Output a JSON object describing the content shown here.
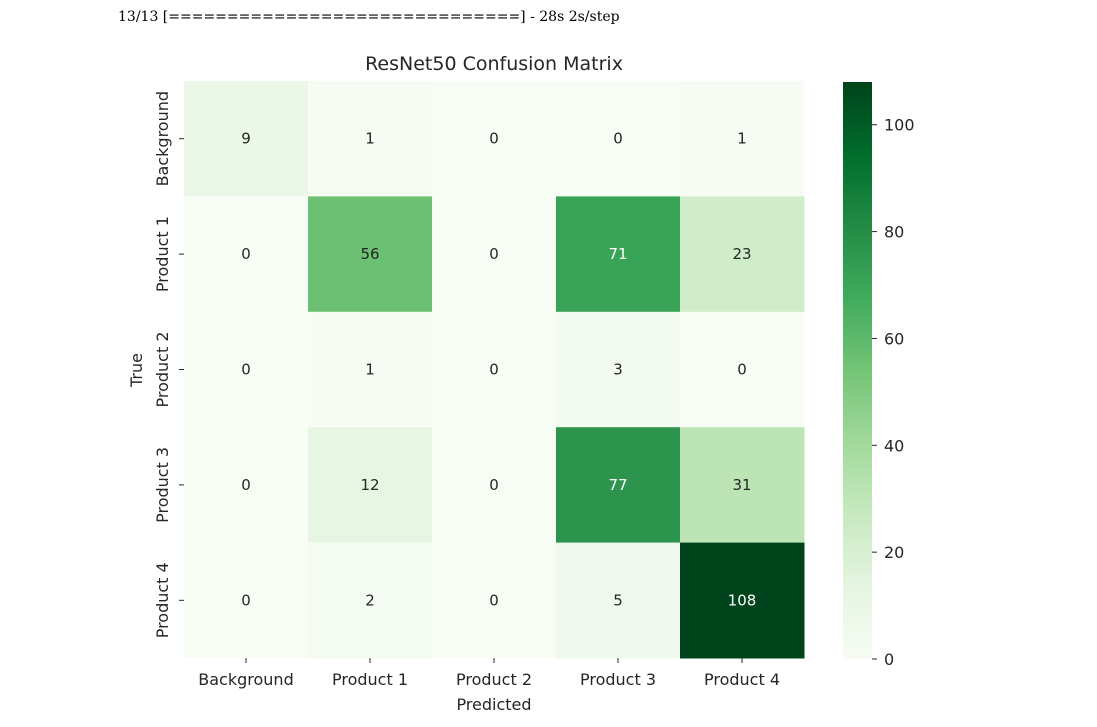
{
  "console": {
    "progress_text": "13/13 [==============================] - 28s 2s/step"
  },
  "chart_data": {
    "type": "heatmap",
    "title": "ResNet50 Confusion Matrix",
    "xlabel": "Predicted",
    "ylabel": "True",
    "x_categories": [
      "Background",
      "Product 1",
      "Product 2",
      "Product 3",
      "Product 4"
    ],
    "y_categories": [
      "Background",
      "Product 1",
      "Product 2",
      "Product 3",
      "Product 4"
    ],
    "values": [
      [
        9,
        1,
        0,
        0,
        1
      ],
      [
        0,
        56,
        0,
        71,
        23
      ],
      [
        0,
        1,
        0,
        3,
        0
      ],
      [
        0,
        12,
        0,
        77,
        31
      ],
      [
        0,
        2,
        0,
        5,
        108
      ]
    ],
    "colorbar": {
      "min": 0,
      "max": 108,
      "ticks": [
        0,
        20,
        40,
        60,
        80,
        100
      ]
    },
    "colormap": "Greens",
    "colors": {
      "low": "#f7fcf5",
      "high": "#00441b"
    }
  }
}
